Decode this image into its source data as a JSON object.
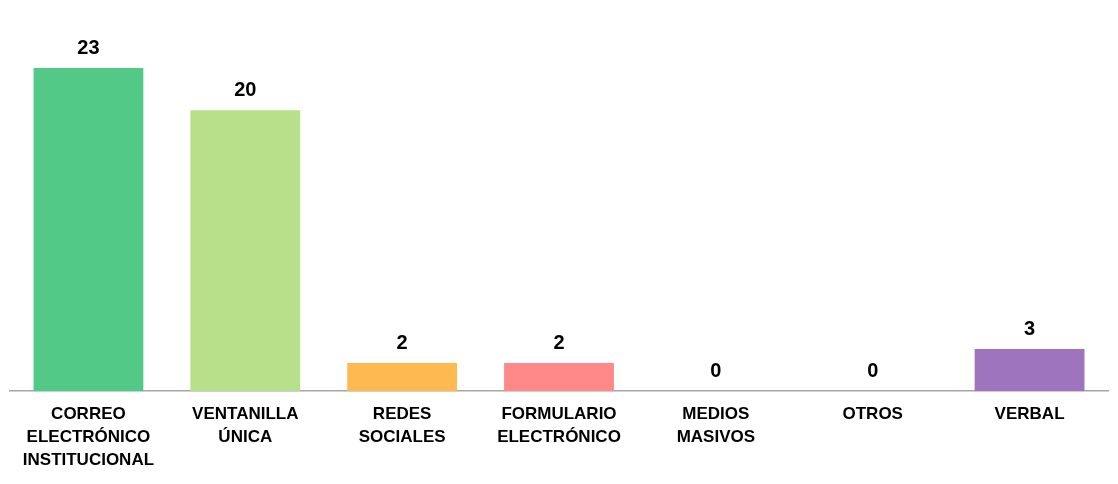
{
  "chart_data": {
    "type": "bar",
    "categories": [
      "CORREO ELECTRÓNICO INSTITUCIONAL",
      "VENTANILLA ÚNICA",
      "REDES SOCIALES",
      "FORMULARIO ELECTRÓNICO",
      "MEDIOS MASIVOS",
      "OTROS",
      "VERBAL"
    ],
    "values": [
      23,
      20,
      2,
      2,
      0,
      0,
      3
    ],
    "colors": [
      "#52c986",
      "#b8e08a",
      "#ffb951",
      "#ff8888",
      "#5b9bd5",
      "#a5a5a5",
      "#9e74bf"
    ],
    "data_labels": true,
    "grid": false,
    "legend": false,
    "tick_labels": "x"
  }
}
